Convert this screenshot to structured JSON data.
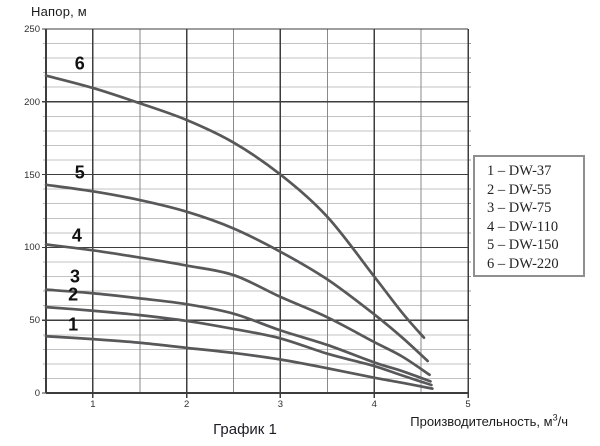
{
  "chart": {
    "xlabel_parts": {
      "pre": "Производительность, м",
      "sup": "3",
      "post": "/ч"
    }
  },
  "chart_data": {
    "type": "line",
    "title": "График 1",
    "xlabel": "Производительность, м³/ч",
    "ylabel": "Напор, м",
    "xlim": [
      0.5,
      5
    ],
    "ylim": [
      0,
      250
    ],
    "x_ticks": [
      1,
      2,
      3,
      4,
      5
    ],
    "y_ticks": [
      0,
      50,
      100,
      150,
      200,
      250
    ],
    "x_minor_step": 0.5,
    "y_minor_step": 10,
    "grid": true,
    "curve_color": "#58585a",
    "major_grid_color": "#3d3d3d",
    "minor_h_grid_color": "#c3c3c3",
    "minor_v_grid_color": "#8a8a8a",
    "legend_position": "right-outside",
    "legend_entries": [
      "1 – DW-37",
      "2 – DW-55",
      "3 – DW-75",
      "4 – DW-110",
      "5 – DW-150",
      "6 – DW-220"
    ],
    "series": [
      {
        "label": "1",
        "name": "DW-37",
        "label_at": {
          "x": 0.79,
          "y": 47
        },
        "points": [
          [
            0.5,
            39
          ],
          [
            1,
            37
          ],
          [
            1.5,
            34.5
          ],
          [
            2,
            31
          ],
          [
            2.5,
            27.5
          ],
          [
            3,
            23
          ],
          [
            3.5,
            17
          ],
          [
            4,
            10.5
          ],
          [
            4.3,
            7
          ],
          [
            4.62,
            3
          ]
        ]
      },
      {
        "label": "2",
        "name": "DW-55",
        "label_at": {
          "x": 0.79,
          "y": 67
        },
        "points": [
          [
            0.5,
            59
          ],
          [
            1,
            56.5
          ],
          [
            1.5,
            53.5
          ],
          [
            2,
            49.5
          ],
          [
            2.5,
            44
          ],
          [
            3,
            37.5
          ],
          [
            3.5,
            27
          ],
          [
            4,
            18.5
          ],
          [
            4.3,
            12
          ],
          [
            4.61,
            5.5
          ]
        ]
      },
      {
        "label": "3",
        "name": "DW-75",
        "label_at": {
          "x": 0.81,
          "y": 80
        },
        "points": [
          [
            0.5,
            71
          ],
          [
            1,
            68.5
          ],
          [
            1.5,
            65
          ],
          [
            2,
            61
          ],
          [
            2.5,
            54.5
          ],
          [
            3,
            43
          ],
          [
            3.5,
            33
          ],
          [
            4,
            21
          ],
          [
            4.3,
            15
          ],
          [
            4.6,
            8
          ]
        ]
      },
      {
        "label": "4",
        "name": "DW-110",
        "label_at": {
          "x": 0.83,
          "y": 108
        },
        "points": [
          [
            0.5,
            102
          ],
          [
            1,
            98
          ],
          [
            1.5,
            93
          ],
          [
            2,
            87.5
          ],
          [
            2.5,
            81
          ],
          [
            3,
            66
          ],
          [
            3.5,
            52
          ],
          [
            4,
            35
          ],
          [
            4.3,
            25
          ],
          [
            4.59,
            12.5
          ]
        ]
      },
      {
        "label": "5",
        "name": "DW-150",
        "label_at": {
          "x": 0.86,
          "y": 151
        },
        "points": [
          [
            0.5,
            143
          ],
          [
            1,
            138.5
          ],
          [
            1.5,
            132.5
          ],
          [
            2,
            124.5
          ],
          [
            2.5,
            113
          ],
          [
            3,
            97
          ],
          [
            3.5,
            78
          ],
          [
            4,
            54
          ],
          [
            4.3,
            38
          ],
          [
            4.57,
            22
          ]
        ]
      },
      {
        "label": "6",
        "name": "DW-220",
        "label_at": {
          "x": 0.86,
          "y": 226
        },
        "points": [
          [
            0.5,
            218
          ],
          [
            1,
            209.5
          ],
          [
            1.5,
            199
          ],
          [
            2,
            187.5
          ],
          [
            2.5,
            172
          ],
          [
            3,
            150
          ],
          [
            3.5,
            121
          ],
          [
            4,
            80
          ],
          [
            4.3,
            55
          ],
          [
            4.53,
            38
          ]
        ]
      }
    ]
  }
}
